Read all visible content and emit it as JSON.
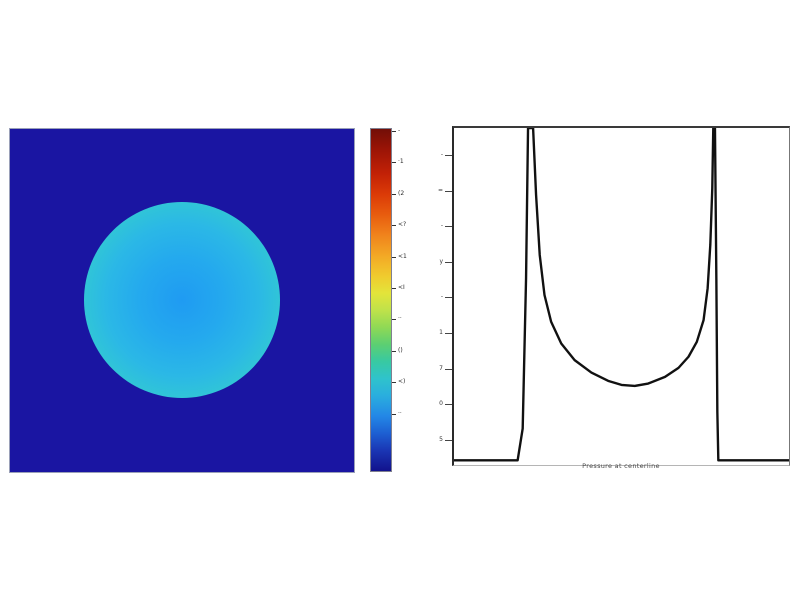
{
  "figure": {
    "background_color": "#ffffff",
    "description": "Two-panel pressure-field figure: 2D droplet field with jet colorbar (left) and centerline pressure profile (right)"
  },
  "heatmap_panel": {
    "field_background_color": "#1a15a2",
    "interface_ring_outer_color": "#faf3de",
    "interface_ring_dark_color": "#4f0a0e",
    "interface_ring_yellow_color": "#eedd38",
    "interior_center_color": "#1f9bf2",
    "colormap": "jet"
  },
  "colorbar": {
    "orientation": "vertical",
    "top_color": "#720e07",
    "bottom_color": "#12128c",
    "tick_labels": [
      "-",
      "·1",
      "(2",
      "<?",
      "<1",
      "<I",
      "··",
      "()",
      "<)",
      "··"
    ]
  },
  "profile_panel": {
    "xlabel": "Pressure at centerline",
    "line_color": "#111111",
    "ytick_labels": [
      "-",
      "=",
      "-",
      "y",
      "-",
      "1",
      "7",
      "0",
      "5"
    ]
  },
  "chart_data": [
    {
      "type": "heatmap",
      "title": "",
      "colormap": "jet",
      "description": "Axisymmetric droplet pressure field: uniform low-value dark-blue exterior, thin cream outline at interface, high-value dark-red interface ring, yellow-orange transition band, moderate cyan-blue interior slightly increasing toward center",
      "field_shape": "circle",
      "circle_center_fraction": [
        0.5,
        0.5
      ],
      "circle_radius_fraction": 0.283,
      "legend_position": "right-colorbar",
      "colorbar_tick_count": 10
    },
    {
      "type": "line",
      "title": "",
      "xlabel": "Pressure at centerline",
      "ylabel": "",
      "grid": false,
      "x_range_fraction": [
        0,
        1
      ],
      "y_range_fraction": [
        0,
        1
      ],
      "note": "Pressure profile along horizontal centerline: zero outside droplet, sharp clipped peaks at the two interface crossings, shallow U-shaped plateau inside",
      "points": [
        [
          0.0,
          0.005
        ],
        [
          0.19,
          0.005
        ],
        [
          0.205,
          0.1
        ],
        [
          0.215,
          0.55
        ],
        [
          0.221,
          1.0
        ],
        [
          0.236,
          1.0
        ],
        [
          0.245,
          0.8
        ],
        [
          0.256,
          0.62
        ],
        [
          0.27,
          0.5
        ],
        [
          0.29,
          0.42
        ],
        [
          0.32,
          0.355
        ],
        [
          0.36,
          0.305
        ],
        [
          0.41,
          0.268
        ],
        [
          0.46,
          0.243
        ],
        [
          0.5,
          0.231
        ],
        [
          0.54,
          0.228
        ],
        [
          0.58,
          0.235
        ],
        [
          0.63,
          0.255
        ],
        [
          0.67,
          0.282
        ],
        [
          0.7,
          0.315
        ],
        [
          0.725,
          0.36
        ],
        [
          0.745,
          0.425
        ],
        [
          0.757,
          0.52
        ],
        [
          0.765,
          0.65
        ],
        [
          0.771,
          0.82
        ],
        [
          0.774,
          1.0
        ],
        [
          0.779,
          1.0
        ],
        [
          0.783,
          0.55
        ],
        [
          0.786,
          0.15
        ],
        [
          0.789,
          0.005
        ],
        [
          1.0,
          0.005
        ]
      ]
    }
  ]
}
